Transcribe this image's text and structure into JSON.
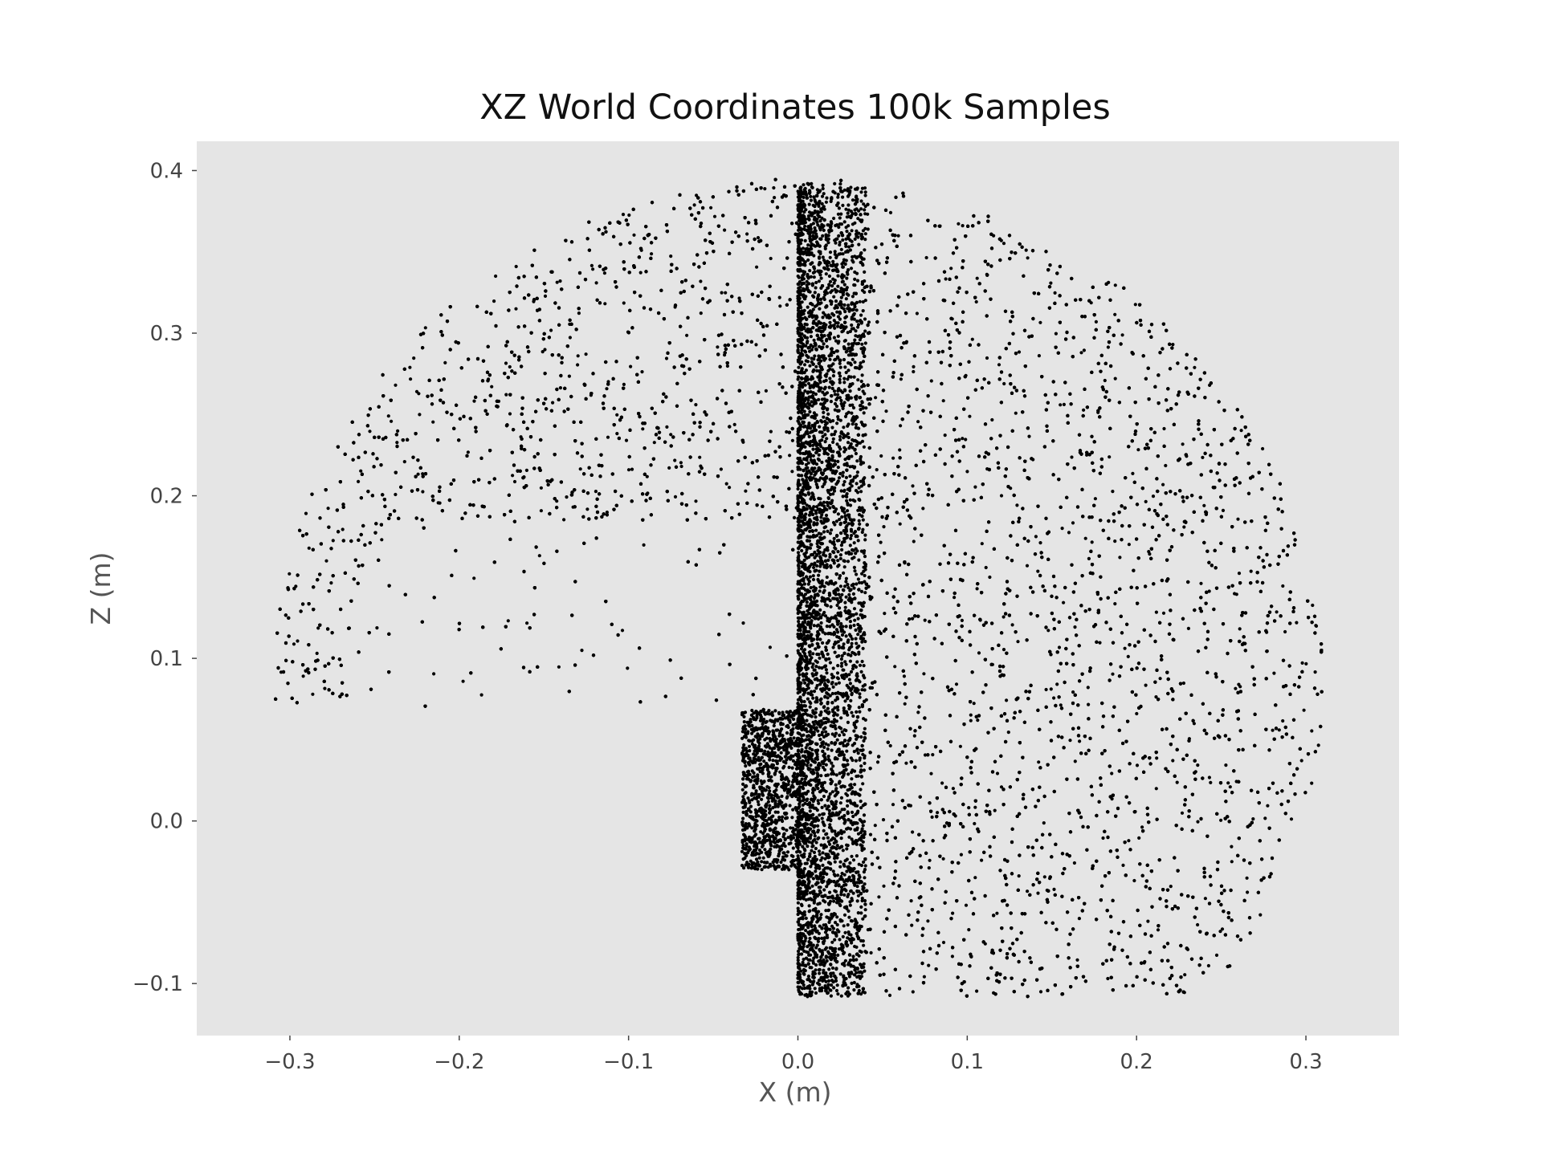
{
  "chart_data": {
    "type": "scatter",
    "title": "XZ World Coordinates 100k Samples",
    "xlabel": "X (m)",
    "ylabel": "Z (m)",
    "xlim": [
      -0.355,
      0.355
    ],
    "ylim": [
      -0.132,
      0.418
    ],
    "xticks": [
      -0.3,
      -0.2,
      -0.1,
      0.0,
      0.1,
      0.2,
      0.3
    ],
    "xtick_labels": [
      "−0.3",
      "−0.2",
      "−0.1",
      "0.0",
      "0.1",
      "0.2",
      "0.3"
    ],
    "yticks": [
      -0.1,
      0.0,
      0.1,
      0.2,
      0.3,
      0.4
    ],
    "ytick_labels": [
      "−0.1",
      "0.0",
      "0.1",
      "0.2",
      "0.3",
      "0.4"
    ],
    "grid": false,
    "legend": "none",
    "marker_color": "#000000",
    "background_color": "#e5e5e5",
    "sample_count": "100k",
    "point_cloud": {
      "center": [
        0.0,
        0.085
      ],
      "radius": 0.31,
      "bottom_z": -0.108,
      "sparse_region": {
        "x_range": [
          -0.325,
          0.0
        ],
        "z_range": [
          0.07,
          0.19
        ]
      },
      "dense_band_x": [
        0.0,
        0.04
      ]
    }
  }
}
